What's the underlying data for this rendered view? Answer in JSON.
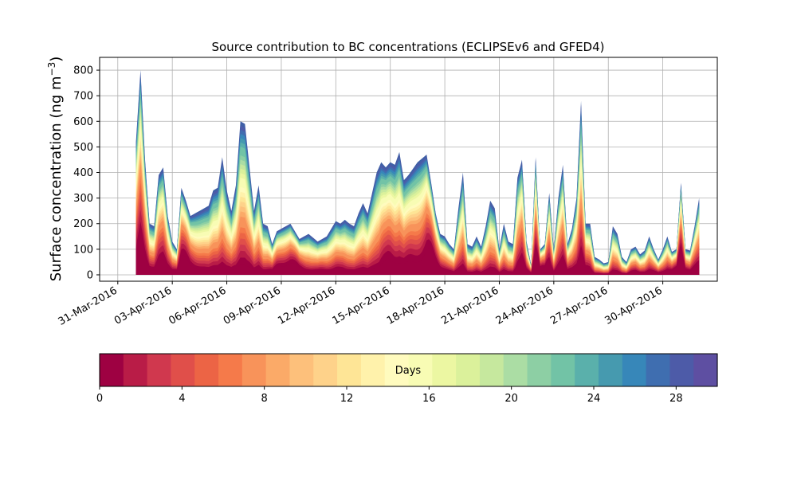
{
  "chart_data": {
    "type": "area",
    "title": "Source contribution to BC concentrations (ECLIPSEv6 and GFED4)",
    "ylabel": "Surface concentration (ng m",
    "ylabel_unit_exp": "−3",
    "ylabel_close": ")",
    "ylim": [
      -25,
      850
    ],
    "yticks": [
      0,
      100,
      200,
      300,
      400,
      500,
      600,
      700,
      800
    ],
    "xlim": [
      "2016-03-30",
      "2016-05-03"
    ],
    "xticks": [
      "31-Mar-2016",
      "03-Apr-2016",
      "06-Apr-2016",
      "09-Apr-2016",
      "12-Apr-2016",
      "15-Apr-2016",
      "18-Apr-2016",
      "21-Apr-2016",
      "24-Apr-2016",
      "27-Apr-2016",
      "30-Apr-2016"
    ],
    "grid": true,
    "x_dates": [
      "2016-04-01",
      "2016-04-01T06",
      "2016-04-01T12",
      "2016-04-01T18",
      "2016-04-02",
      "2016-04-02T06",
      "2016-04-02T12",
      "2016-04-02T18",
      "2016-04-03",
      "2016-04-03T06",
      "2016-04-03T12",
      "2016-04-03T18",
      "2016-04-04",
      "2016-04-04T12",
      "2016-04-05",
      "2016-04-05T06",
      "2016-04-05T12",
      "2016-04-05T18",
      "2016-04-06",
      "2016-04-06T06",
      "2016-04-06T12",
      "2016-04-06T18",
      "2016-04-07",
      "2016-04-07T06",
      "2016-04-07T12",
      "2016-04-07T18",
      "2016-04-08",
      "2016-04-08T06",
      "2016-04-08T12",
      "2016-04-08T18",
      "2016-04-09",
      "2016-04-09T12",
      "2016-04-10",
      "2016-04-10T12",
      "2016-04-11",
      "2016-04-11T12",
      "2016-04-12",
      "2016-04-12T06",
      "2016-04-12T12",
      "2016-04-12T18",
      "2016-04-13",
      "2016-04-13T06",
      "2016-04-13T12",
      "2016-04-13T18",
      "2016-04-14",
      "2016-04-14T06",
      "2016-04-14T12",
      "2016-04-14T18",
      "2016-04-15",
      "2016-04-15T06",
      "2016-04-15T12",
      "2016-04-15T18",
      "2016-04-16",
      "2016-04-16T12",
      "2016-04-17",
      "2016-04-17T06",
      "2016-04-17T12",
      "2016-04-17T18",
      "2016-04-18",
      "2016-04-18T06",
      "2016-04-18T12",
      "2016-04-18T18",
      "2016-04-19",
      "2016-04-19T06",
      "2016-04-19T12",
      "2016-04-19T18",
      "2016-04-20",
      "2016-04-20T06",
      "2016-04-20T12",
      "2016-04-20T18",
      "2016-04-21",
      "2016-04-21T06",
      "2016-04-21T12",
      "2016-04-21T18",
      "2016-04-22",
      "2016-04-22T06",
      "2016-04-22T12",
      "2016-04-22T18",
      "2016-04-23",
      "2016-04-23T06",
      "2016-04-23T12",
      "2016-04-23T18",
      "2016-04-24",
      "2016-04-24T06",
      "2016-04-24T12",
      "2016-04-24T18",
      "2016-04-25",
      "2016-04-25T06",
      "2016-04-25T12",
      "2016-04-25T18",
      "2016-04-26",
      "2016-04-26T06",
      "2016-04-26T12",
      "2016-04-26T18",
      "2016-04-27",
      "2016-04-27T06",
      "2016-04-27T12",
      "2016-04-27T18",
      "2016-04-28",
      "2016-04-28T06",
      "2016-04-28T12",
      "2016-04-28T18",
      "2016-04-29",
      "2016-04-29T06",
      "2016-04-29T12",
      "2016-04-29T18",
      "2016-04-30",
      "2016-04-30T06",
      "2016-04-30T12",
      "2016-04-30T18",
      "2016-05-01",
      "2016-05-01T06",
      "2016-05-01T12",
      "2016-05-01T18",
      "2016-05-02"
    ],
    "total": [
      520,
      800,
      450,
      200,
      190,
      390,
      420,
      230,
      130,
      100,
      340,
      290,
      230,
      250,
      270,
      330,
      340,
      460,
      330,
      250,
      350,
      600,
      590,
      420,
      250,
      350,
      200,
      190,
      120,
      170,
      180,
      200,
      140,
      160,
      130,
      150,
      210,
      200,
      215,
      200,
      190,
      240,
      280,
      240,
      320,
      400,
      440,
      420,
      440,
      430,
      480,
      370,
      390,
      440,
      470,
      360,
      240,
      160,
      150,
      120,
      100,
      260,
      400,
      120,
      110,
      150,
      110,
      190,
      290,
      260,
      100,
      200,
      130,
      120,
      380,
      450,
      130,
      40,
      460,
      100,
      120,
      320,
      100,
      300,
      430,
      120,
      180,
      300,
      680,
      200,
      200,
      70,
      60,
      45,
      50,
      190,
      160,
      70,
      50,
      100,
      110,
      80,
      95,
      150,
      100,
      60,
      100,
      150,
      90,
      100,
      360,
      100,
      95,
      190,
      300
    ],
    "series_name": "Days",
    "series_levels": [
      0,
      1,
      2,
      3,
      4,
      5,
      6,
      7,
      8,
      9,
      10,
      11,
      12,
      13,
      14,
      15,
      16,
      17,
      18,
      19,
      20,
      21,
      22,
      23,
      24,
      25,
      26,
      27,
      28,
      29,
      30
    ],
    "colorbar": {
      "label": "Days",
      "ticks": [
        0,
        4,
        8,
        12,
        16,
        20,
        24,
        28
      ],
      "range": [
        0,
        30
      ],
      "colors": [
        "#9e0142",
        "#b91c47",
        "#d0384e",
        "#e04f4a",
        "#ec6445",
        "#f57a4a",
        "#f8935a",
        "#fbaa68",
        "#fdc07b",
        "#fed28a",
        "#fee596",
        "#fff2ab",
        "#fffbbe",
        "#f8fcb4",
        "#ecf7a2",
        "#dbf19b",
        "#c6e89e",
        "#abdda4",
        "#8dcfa4",
        "#72c3a6",
        "#5ab0ab",
        "#469aaf",
        "#3787b9",
        "#3f6eb0",
        "#4d5ba8",
        "#5e4fa2"
      ]
    }
  }
}
